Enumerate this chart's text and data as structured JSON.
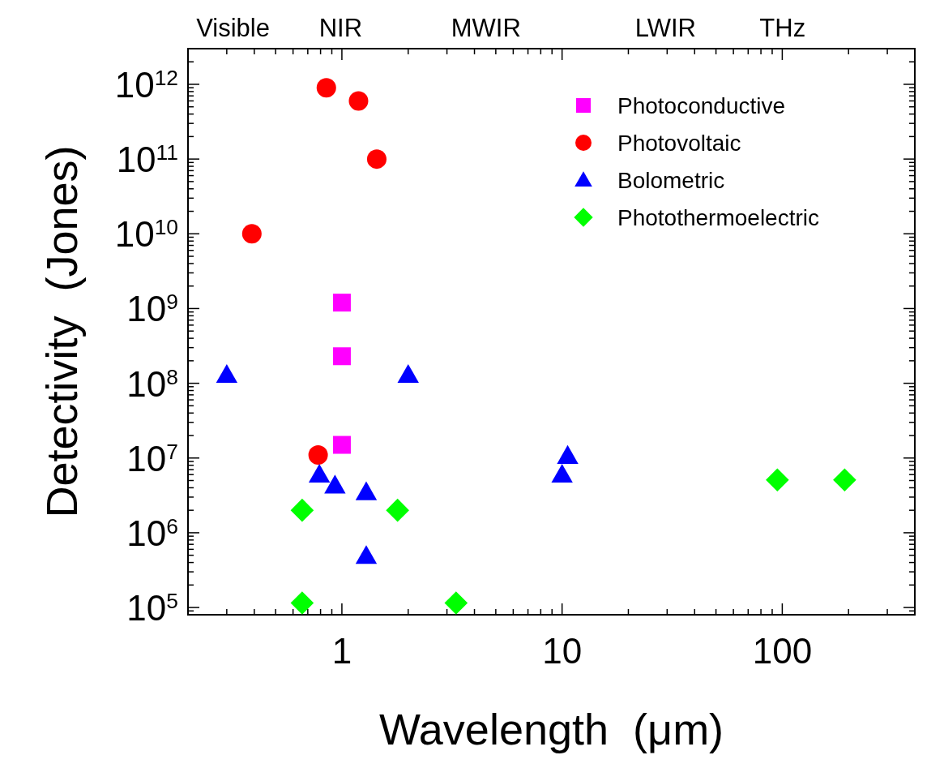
{
  "chart_data": {
    "type": "scatter",
    "xlabel": "Wavelength  (μm)",
    "ylabel": "Detectivity  (Jones)",
    "log": "xy",
    "xlim": [
      0.2,
      400
    ],
    "xticks": [
      1,
      10,
      100
    ],
    "annotations": [
      "Visible",
      "NIR",
      "MWIR",
      "LWIR",
      "THz"
    ],
    "ylim": [
      80000,
      3000000000000
    ],
    "yticks": [
      {
        "value": 100000,
        "label": "10$^{5}$"
      },
      {
        "value": 1000000,
        "label": "10$^{6}$"
      },
      {
        "value": 10000000,
        "label": "10$^{7}$"
      },
      {
        "value": 100000000,
        "label": "10$^{8}$"
      },
      {
        "value": 1000000000,
        "label": "10$^{9}$"
      },
      {
        "value": 10000000000,
        "label": "10$^{10}$"
      },
      {
        "value": 100000000000,
        "label": "10$^{11}$"
      },
      {
        "value": 1000000000000,
        "label": "10$^{12}$"
      }
    ],
    "legend": "top right",
    "series": [
      {
        "name": "Photoconductive",
        "color": "#ff00ff",
        "marker": "square",
        "x": [
          1,
          1,
          1
        ],
        "values": [
          1200000000,
          230000000,
          15000000
        ]
      },
      {
        "name": "Photovoltaic",
        "color": "#ff0000",
        "marker": "circle",
        "x": [
          0.85,
          1.19,
          1.44,
          0.39,
          0.78
        ],
        "values": [
          900000000000,
          600000000000,
          100000000000,
          10000000000,
          11000000
        ]
      },
      {
        "name": "Bolometric",
        "color": "#0000ff",
        "marker": "triangle",
        "x": [
          0.3,
          2,
          0.79,
          0.93,
          1.29,
          1.29,
          10,
          10.6
        ],
        "values": [
          130000000,
          130000000,
          6000000,
          4300000,
          3500000,
          490000,
          6000000,
          10700000
        ]
      },
      {
        "name": "Photothermoelectric",
        "color": "#00ff00",
        "marker": "diamond",
        "x": [
          0.66,
          0.66,
          1.79,
          3.3,
          95,
          192
        ],
        "values": [
          2000000,
          115000,
          2000000,
          115000,
          5100000,
          5100000
        ]
      }
    ]
  }
}
